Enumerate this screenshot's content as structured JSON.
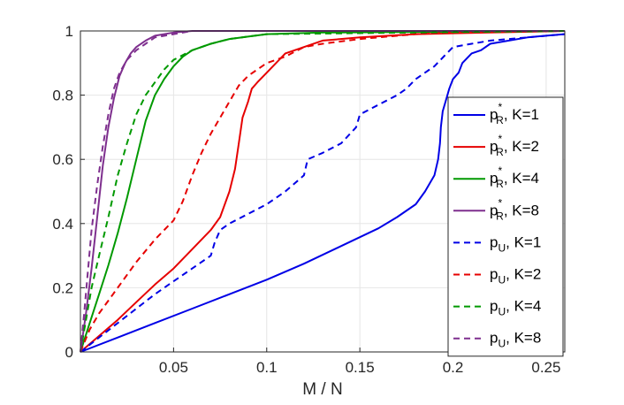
{
  "chart_data": {
    "type": "line",
    "title": "",
    "xlabel": "M / N",
    "ylabel": "",
    "xlim": [
      0,
      0.26
    ],
    "ylim": [
      0,
      1
    ],
    "x_ticks": [
      0.05,
      0.1,
      0.15,
      0.2,
      0.25
    ],
    "x_tick_labels": [
      "0.05",
      "0.1",
      "0.15",
      "0.2",
      "0.25"
    ],
    "y_ticks": [
      0,
      0.2,
      0.4,
      0.6,
      0.8,
      1
    ],
    "y_tick_labels": [
      "0",
      "0.2",
      "0.4",
      "0.6",
      "0.8",
      "1"
    ],
    "grid": true,
    "legend_position": "right",
    "series": [
      {
        "name": "p_R^*, K=1",
        "legend": {
          "base": "p",
          "sub": "R",
          "sup": "*",
          "suffix": ", K=1"
        },
        "color": "#0000e6",
        "dash": "solid",
        "points": [
          [
            0,
            0
          ],
          [
            0.02,
            0.045
          ],
          [
            0.04,
            0.09
          ],
          [
            0.06,
            0.135
          ],
          [
            0.08,
            0.18
          ],
          [
            0.1,
            0.225
          ],
          [
            0.12,
            0.275
          ],
          [
            0.14,
            0.33
          ],
          [
            0.16,
            0.385
          ],
          [
            0.17,
            0.42
          ],
          [
            0.18,
            0.46
          ],
          [
            0.185,
            0.5
          ],
          [
            0.19,
            0.55
          ],
          [
            0.192,
            0.6
          ],
          [
            0.193,
            0.65
          ],
          [
            0.1935,
            0.7
          ],
          [
            0.1945,
            0.75
          ],
          [
            0.196,
            0.78
          ],
          [
            0.198,
            0.82
          ],
          [
            0.2,
            0.85
          ],
          [
            0.203,
            0.87
          ],
          [
            0.205,
            0.9
          ],
          [
            0.21,
            0.93
          ],
          [
            0.215,
            0.94
          ],
          [
            0.22,
            0.96
          ],
          [
            0.23,
            0.97
          ],
          [
            0.24,
            0.98
          ],
          [
            0.25,
            0.985
          ],
          [
            0.26,
            0.99
          ]
        ]
      },
      {
        "name": "p_R^*, K=2",
        "legend": {
          "base": "p",
          "sub": "R",
          "sup": "*",
          "suffix": ", K=2"
        },
        "color": "#e60000",
        "dash": "solid",
        "points": [
          [
            0,
            0
          ],
          [
            0.01,
            0.05
          ],
          [
            0.02,
            0.1
          ],
          [
            0.03,
            0.155
          ],
          [
            0.04,
            0.21
          ],
          [
            0.05,
            0.26
          ],
          [
            0.06,
            0.32
          ],
          [
            0.07,
            0.38
          ],
          [
            0.075,
            0.42
          ],
          [
            0.08,
            0.5
          ],
          [
            0.083,
            0.57
          ],
          [
            0.085,
            0.65
          ],
          [
            0.087,
            0.73
          ],
          [
            0.09,
            0.78
          ],
          [
            0.092,
            0.82
          ],
          [
            0.095,
            0.84
          ],
          [
            0.1,
            0.87
          ],
          [
            0.105,
            0.9
          ],
          [
            0.11,
            0.93
          ],
          [
            0.12,
            0.95
          ],
          [
            0.13,
            0.97
          ],
          [
            0.15,
            0.98
          ],
          [
            0.18,
            0.99
          ],
          [
            0.22,
            0.995
          ],
          [
            0.26,
            1
          ]
        ]
      },
      {
        "name": "p_R^*, K=4",
        "legend": {
          "base": "p",
          "sub": "R",
          "sup": "*",
          "suffix": ", K=4"
        },
        "color": "#009900",
        "dash": "solid",
        "points": [
          [
            0,
            0
          ],
          [
            0.005,
            0.09
          ],
          [
            0.01,
            0.18
          ],
          [
            0.015,
            0.27
          ],
          [
            0.02,
            0.37
          ],
          [
            0.025,
            0.48
          ],
          [
            0.03,
            0.6
          ],
          [
            0.035,
            0.72
          ],
          [
            0.04,
            0.8
          ],
          [
            0.045,
            0.85
          ],
          [
            0.05,
            0.89
          ],
          [
            0.055,
            0.92
          ],
          [
            0.06,
            0.94
          ],
          [
            0.07,
            0.96
          ],
          [
            0.08,
            0.975
          ],
          [
            0.1,
            0.99
          ],
          [
            0.13,
            0.995
          ],
          [
            0.26,
            1
          ]
        ]
      },
      {
        "name": "p_R^*, K=8",
        "legend": {
          "base": "p",
          "sub": "R",
          "sup": "*",
          "suffix": ", K=8"
        },
        "color": "#7e2f8e",
        "dash": "solid",
        "points": [
          [
            0,
            0
          ],
          [
            0.003,
            0.12
          ],
          [
            0.006,
            0.26
          ],
          [
            0.009,
            0.42
          ],
          [
            0.012,
            0.58
          ],
          [
            0.015,
            0.7
          ],
          [
            0.018,
            0.79
          ],
          [
            0.021,
            0.86
          ],
          [
            0.024,
            0.9
          ],
          [
            0.027,
            0.93
          ],
          [
            0.03,
            0.95
          ],
          [
            0.035,
            0.97
          ],
          [
            0.04,
            0.985
          ],
          [
            0.05,
            0.995
          ],
          [
            0.06,
            1
          ],
          [
            0.26,
            1
          ]
        ]
      },
      {
        "name": "p_U, K=1",
        "legend": {
          "base": "p",
          "sub": "U",
          "sup": "",
          "suffix": ", K=1"
        },
        "color": "#0000e6",
        "dash": "dashed",
        "points": [
          [
            0,
            0
          ],
          [
            0.02,
            0.09
          ],
          [
            0.04,
            0.18
          ],
          [
            0.05,
            0.22
          ],
          [
            0.06,
            0.26
          ],
          [
            0.07,
            0.3
          ],
          [
            0.072,
            0.34
          ],
          [
            0.075,
            0.38
          ],
          [
            0.08,
            0.4
          ],
          [
            0.09,
            0.43
          ],
          [
            0.1,
            0.46
          ],
          [
            0.11,
            0.5
          ],
          [
            0.12,
            0.55
          ],
          [
            0.122,
            0.6
          ],
          [
            0.13,
            0.62
          ],
          [
            0.14,
            0.65
          ],
          [
            0.148,
            0.7
          ],
          [
            0.15,
            0.74
          ],
          [
            0.16,
            0.77
          ],
          [
            0.17,
            0.8
          ],
          [
            0.175,
            0.82
          ],
          [
            0.18,
            0.85
          ],
          [
            0.19,
            0.89
          ],
          [
            0.195,
            0.92
          ],
          [
            0.2,
            0.95
          ],
          [
            0.21,
            0.96
          ],
          [
            0.22,
            0.97
          ],
          [
            0.24,
            0.98
          ],
          [
            0.26,
            0.99
          ]
        ]
      },
      {
        "name": "p_U, K=2",
        "legend": {
          "base": "p",
          "sub": "U",
          "sup": "",
          "suffix": ", K=2"
        },
        "color": "#e60000",
        "dash": "dashed",
        "points": [
          [
            0,
            0
          ],
          [
            0.005,
            0.07
          ],
          [
            0.01,
            0.12
          ],
          [
            0.02,
            0.2
          ],
          [
            0.03,
            0.28
          ],
          [
            0.04,
            0.35
          ],
          [
            0.05,
            0.41
          ],
          [
            0.055,
            0.47
          ],
          [
            0.06,
            0.55
          ],
          [
            0.065,
            0.62
          ],
          [
            0.07,
            0.68
          ],
          [
            0.075,
            0.73
          ],
          [
            0.08,
            0.78
          ],
          [
            0.085,
            0.83
          ],
          [
            0.09,
            0.86
          ],
          [
            0.1,
            0.9
          ],
          [
            0.11,
            0.92
          ],
          [
            0.12,
            0.95
          ],
          [
            0.13,
            0.96
          ],
          [
            0.15,
            0.975
          ],
          [
            0.18,
            0.99
          ],
          [
            0.2,
            0.995
          ],
          [
            0.26,
            1
          ]
        ]
      },
      {
        "name": "p_U, K=4",
        "legend": {
          "base": "p",
          "sub": "U",
          "sup": "",
          "suffix": ", K=4"
        },
        "color": "#009900",
        "dash": "dashed",
        "points": [
          [
            0,
            0
          ],
          [
            0.003,
            0.1
          ],
          [
            0.006,
            0.2
          ],
          [
            0.01,
            0.3
          ],
          [
            0.015,
            0.42
          ],
          [
            0.02,
            0.55
          ],
          [
            0.025,
            0.65
          ],
          [
            0.03,
            0.74
          ],
          [
            0.035,
            0.8
          ],
          [
            0.04,
            0.84
          ],
          [
            0.045,
            0.88
          ],
          [
            0.05,
            0.91
          ],
          [
            0.06,
            0.94
          ],
          [
            0.07,
            0.96
          ],
          [
            0.08,
            0.975
          ],
          [
            0.1,
            0.99
          ],
          [
            0.26,
            1
          ]
        ]
      },
      {
        "name": "p_U, K=8",
        "legend": {
          "base": "p",
          "sub": "U",
          "sup": "",
          "suffix": ", K=8"
        },
        "color": "#7e2f8e",
        "dash": "dashed",
        "points": [
          [
            0,
            0
          ],
          [
            0.002,
            0.12
          ],
          [
            0.004,
            0.25
          ],
          [
            0.006,
            0.38
          ],
          [
            0.009,
            0.52
          ],
          [
            0.012,
            0.64
          ],
          [
            0.015,
            0.74
          ],
          [
            0.018,
            0.82
          ],
          [
            0.021,
            0.87
          ],
          [
            0.025,
            0.91
          ],
          [
            0.03,
            0.94
          ],
          [
            0.035,
            0.96
          ],
          [
            0.04,
            0.98
          ],
          [
            0.05,
            0.99
          ],
          [
            0.06,
            1
          ],
          [
            0.26,
            1
          ]
        ]
      }
    ]
  }
}
